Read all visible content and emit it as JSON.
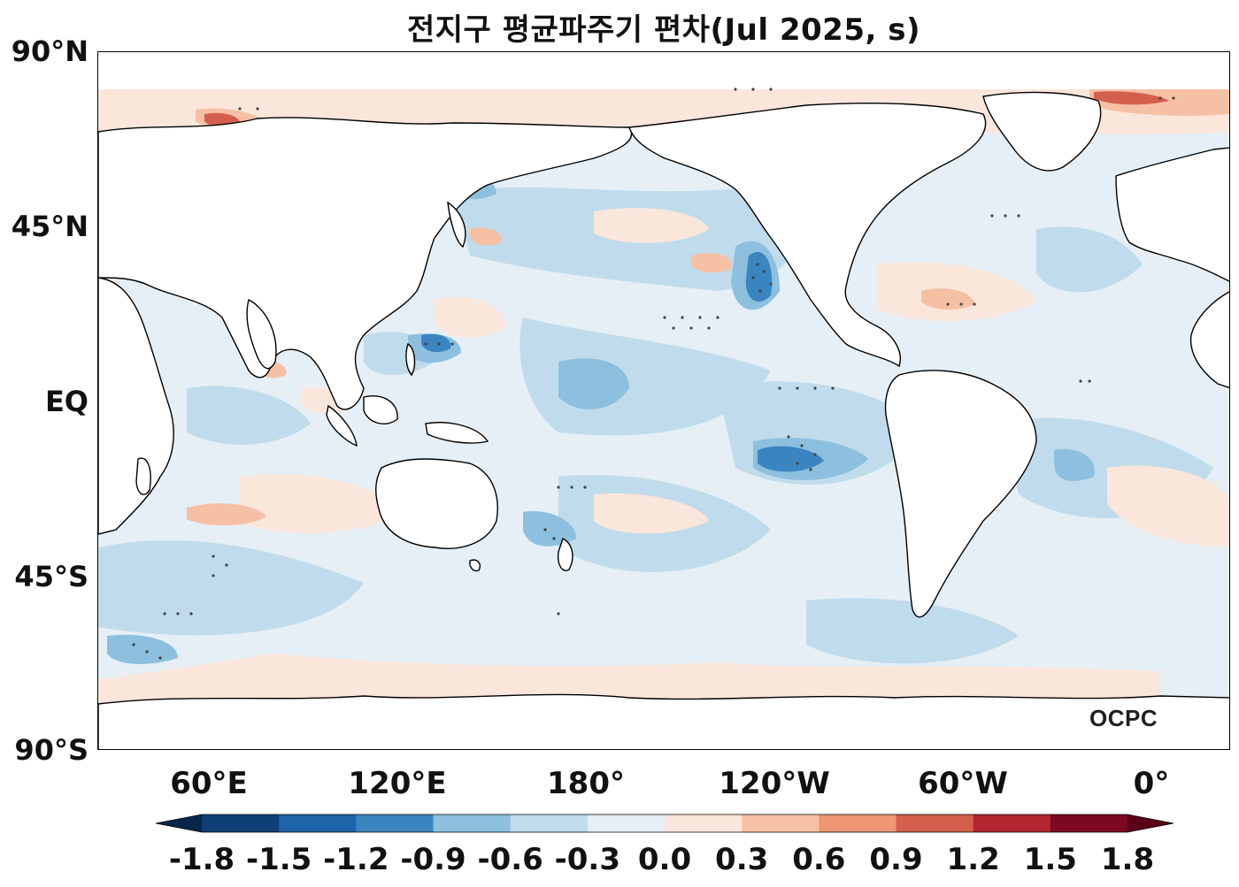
{
  "title": "전지구 평균파주기 편차(Jul 2025, s)",
  "logo": "OCPC",
  "lat_labels": [
    "90°N",
    "45°N",
    "EQ",
    "45°S",
    "90°S"
  ],
  "lon_labels": [
    "60°E",
    "120°E",
    "180°",
    "120°W",
    "60°W",
    "0°"
  ],
  "colorbar": {
    "ticks": [
      "-1.8",
      "-1.5",
      "-1.2",
      "-0.9",
      "-0.6",
      "-0.3",
      "0.0",
      "0.3",
      "0.6",
      "0.9",
      "1.2",
      "1.5",
      "1.8"
    ],
    "colors": [
      "#0e3f77",
      "#1f63a8",
      "#3a85c0",
      "#8cc0de",
      "#c0dbec",
      "#e6eff5",
      "#fbe6dc",
      "#f6c0a4",
      "#ee9674",
      "#d3604d",
      "#b32630",
      "#7c0822"
    ]
  },
  "legend_colors": {
    "ocean_base": "#e6eff5",
    "land": "#ffffff",
    "coast": "#000000",
    "stipple": "#444444"
  }
}
